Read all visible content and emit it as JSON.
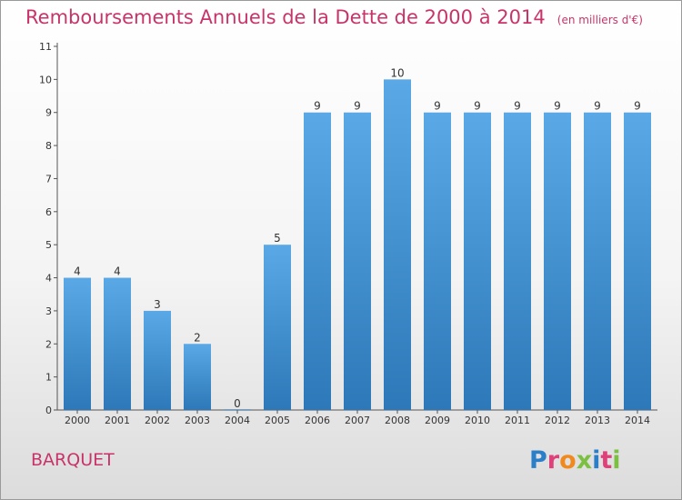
{
  "page": {
    "title": "Remboursements Annuels de la Dette de 2000 à 2014",
    "subtitle": "(en milliers d'€)",
    "commune": "BARQUET",
    "logo": "Proxiti"
  },
  "colors": {
    "title": "#c8346a",
    "bar_top": "#5aa9e6",
    "bar_bottom": "#2d78b8",
    "logo_letters": [
      "#2b7ec8",
      "#e0407a",
      "#f08a1e",
      "#7bc043",
      "#2b7ec8",
      "#e0407a",
      "#7bc043"
    ]
  },
  "chart_data": {
    "type": "bar",
    "title": "Remboursements Annuels de la Dette de 2000 à 2014",
    "subtitle": "(en milliers d'€)",
    "categories": [
      "2000",
      "2001",
      "2002",
      "2003",
      "2004",
      "2005",
      "2006",
      "2007",
      "2008",
      "2009",
      "2010",
      "2011",
      "2012",
      "2013",
      "2014"
    ],
    "values": [
      4,
      4,
      3,
      2,
      0,
      5,
      9,
      9,
      10,
      9,
      9,
      9,
      9,
      9,
      9
    ],
    "ylim": [
      0,
      11
    ],
    "yticks": [
      0,
      1,
      2,
      3,
      4,
      5,
      6,
      7,
      8,
      9,
      10,
      11
    ],
    "grid": false,
    "legend": "none"
  }
}
